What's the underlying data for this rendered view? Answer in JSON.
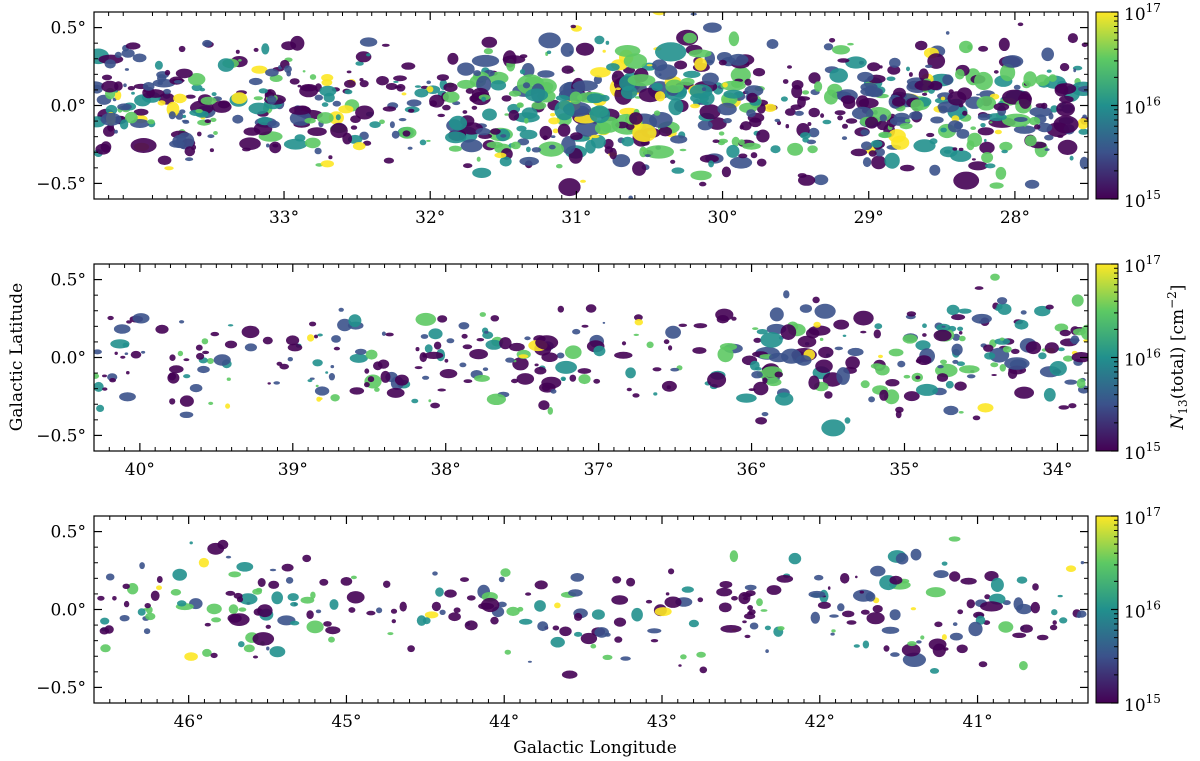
{
  "chart_data": [
    {
      "type": "heatmap",
      "title": "",
      "xlabel": "",
      "ylabel": "",
      "xlim": [
        34.3,
        27.5
      ],
      "ylim": [
        -0.6,
        0.6
      ],
      "xticks": [
        33,
        32,
        31,
        30,
        29,
        28
      ],
      "xtick_labels": [
        "33°",
        "32°",
        "31°",
        "30°",
        "29°",
        "28°"
      ],
      "yticks": [
        0.5,
        0.0,
        -0.5
      ],
      "ytick_labels": [
        "0.5°",
        "0.0°",
        "−0.5°"
      ],
      "colorbar": {
        "scale": "log",
        "range": [
          1000000000000000.0,
          1e+17
        ],
        "labels": [
          "10",
          "10",
          "10"
        ],
        "exponents": [
          "15",
          "16",
          "17"
        ],
        "label": ""
      }
    },
    {
      "type": "heatmap",
      "title": "",
      "xlabel": "",
      "ylabel": "Galactic Latitude",
      "xlim": [
        40.3,
        33.8
      ],
      "ylim": [
        -0.6,
        0.6
      ],
      "xticks": [
        40,
        39,
        38,
        37,
        36,
        35,
        34
      ],
      "xtick_labels": [
        "40°",
        "39°",
        "38°",
        "37°",
        "36°",
        "35°",
        "34°"
      ],
      "yticks": [
        0.5,
        0.0,
        -0.5
      ],
      "ytick_labels": [
        "0.5°",
        "0.0°",
        "−0.5°"
      ],
      "colorbar": {
        "scale": "log",
        "range": [
          1000000000000000.0,
          1e+17
        ],
        "labels": [
          "10",
          "10",
          "10"
        ],
        "exponents": [
          "15",
          "16",
          "17"
        ],
        "label": "N13(total) [cm−2]"
      }
    },
    {
      "type": "heatmap",
      "title": "",
      "xlabel": "Galactic Longitude",
      "ylabel": "",
      "xlim": [
        46.6,
        40.3
      ],
      "ylim": [
        -0.6,
        0.6
      ],
      "xticks": [
        46,
        45,
        44,
        43,
        42,
        41
      ],
      "xtick_labels": [
        "46°",
        "45°",
        "44°",
        "43°",
        "42°",
        "41°"
      ],
      "yticks": [
        0.5,
        0.0,
        -0.5
      ],
      "ytick_labels": [
        "0.5°",
        "0.0°",
        "−0.5°"
      ],
      "colorbar": {
        "scale": "log",
        "range": [
          1000000000000000.0,
          1e+17
        ],
        "labels": [
          "10",
          "10",
          "10"
        ],
        "exponents": [
          "15",
          "16",
          "17"
        ],
        "label": ""
      }
    }
  ],
  "colormap": [
    "#440154",
    "#3b528b",
    "#21908d",
    "#5dc963",
    "#fde725"
  ],
  "colorbar_label": {
    "prefix": "N",
    "subscript": "13",
    "middle": "(total) [cm",
    "superscript": "−2",
    "suffix": "]"
  }
}
